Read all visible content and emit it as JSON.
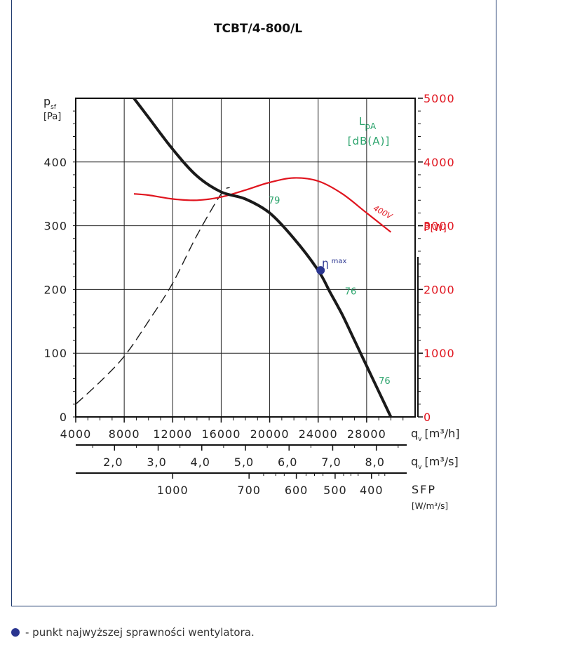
{
  "colors": {
    "pressure": "#1a1a1a",
    "power": "#e0141e",
    "sound": "#2aa36b",
    "eta": "#2a3590",
    "frame": "#1f3a6e"
  },
  "footer": {
    "note": "- punkt najwyższej sprawności wentylatora."
  },
  "chart_data": {
    "type": "line",
    "title": "TCBT/4-800/L",
    "y_left": {
      "label": "p",
      "label_sub": "sf",
      "unit": "[Pa]",
      "range": [
        0,
        500
      ],
      "ticks": [
        0,
        100,
        200,
        300,
        400
      ]
    },
    "y_right": {
      "label": "P",
      "unit": "[W]",
      "range": [
        0,
        5000
      ],
      "ticks": [
        0,
        1000,
        2000,
        3000,
        4000,
        5000
      ]
    },
    "x_axis": {
      "label": "q",
      "label_sub": "v",
      "unit": "[m³/h]",
      "range": [
        4000,
        32000
      ],
      "ticks": [
        4000,
        8000,
        12000,
        16000,
        20000,
        24000,
        28000
      ],
      "tick_labels": [
        "4000",
        "8000",
        "12000",
        "16000",
        "20000",
        "24000",
        "28000"
      ]
    },
    "x_axis_2": {
      "label": "q",
      "label_sub": "v",
      "unit": "[m³/s]",
      "ticks": [
        2.0,
        3.0,
        4.0,
        5.0,
        6.0,
        7.0,
        8.0
      ],
      "tick_labels": [
        "2,0",
        "3,0",
        "4,0",
        "5,0",
        "6,0",
        "7,0",
        "8,0"
      ]
    },
    "x_axis_3": {
      "label": "SFP",
      "unit": "[W/m³/s]",
      "ticks": [
        1000,
        700,
        600,
        500,
        400
      ],
      "tick_labels": [
        "1000",
        "700",
        "600",
        "500",
        "400"
      ],
      "flow_positions_m3h": [
        12000,
        18300,
        22200,
        25400,
        28400
      ]
    },
    "sound_axis": {
      "label": "L",
      "label_sub": "pA",
      "unit": "[dB(A)]"
    },
    "series": [
      {
        "key": "pressure",
        "x": [
          8800,
          10000,
          12000,
          14000,
          16000,
          18000,
          20000,
          22000,
          24000,
          25000,
          26000,
          27000,
          28000,
          29000,
          30000
        ],
        "y": [
          500,
          470,
          420,
          378,
          353,
          342,
          320,
          280,
          230,
          195,
          160,
          120,
          80,
          40,
          0
        ]
      },
      {
        "key": "power",
        "name": "400V",
        "x": [
          8800,
          10000,
          12000,
          14000,
          16000,
          18000,
          20000,
          22000,
          24000,
          26000,
          28000,
          30000
        ],
        "y": [
          3500,
          3480,
          3420,
          3400,
          3450,
          3560,
          3680,
          3750,
          3700,
          3500,
          3200,
          2900
        ]
      },
      {
        "key": "system",
        "x": [
          4000,
          6000,
          8000,
          10000,
          12000,
          14000,
          16000,
          16700
        ],
        "y": [
          20,
          55,
          95,
          150,
          210,
          285,
          350,
          360
        ]
      }
    ],
    "sound_labels": [
      {
        "text": "79",
        "x": 19900,
        "y": 335
      },
      {
        "text": "76",
        "x": 26200,
        "y": 192
      },
      {
        "text": "76",
        "x": 29000,
        "y": 52
      }
    ],
    "eta_point": {
      "x": 24200,
      "y": 230,
      "label": "η",
      "label_sup": "max"
    },
    "grid": true
  }
}
